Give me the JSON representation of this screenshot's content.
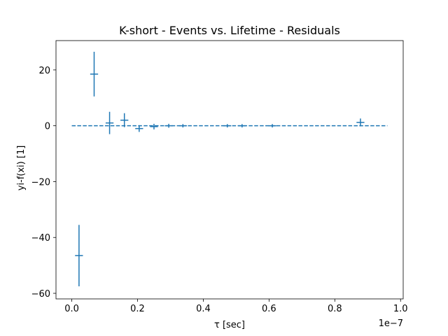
{
  "chart_data": {
    "type": "scatter",
    "title": "K-short - Events vs. Lifetime - Residuals",
    "xlabel": "τ [sec]",
    "ylabel": "yi-f(xi) [1]",
    "x_offset_label": "1e−7",
    "xlim": [
      -0.048,
      1.008
    ],
    "ylim": [
      -62,
      30.5
    ],
    "xticks": [
      0.0,
      0.2,
      0.4,
      0.6,
      0.8,
      1.0
    ],
    "xtick_labels": [
      "0.0",
      "0.2",
      "0.4",
      "0.6",
      "0.8",
      "1.0"
    ],
    "yticks": [
      -60,
      -40,
      -20,
      0,
      20
    ],
    "ytick_labels": [
      "−60",
      "−40",
      "−20",
      "0",
      "20"
    ],
    "grid": false,
    "legend": "none",
    "series": [
      {
        "kind": "errorbar",
        "color": "#1f77b4",
        "points": [
          {
            "x": 0.022,
            "y": -46.5,
            "yerr": 11.0,
            "xerr": 0.012
          },
          {
            "x": 0.068,
            "y": 18.5,
            "yerr": 8.0,
            "xerr": 0.012
          },
          {
            "x": 0.115,
            "y": 1.0,
            "yerr": 4.0,
            "xerr": 0.012
          },
          {
            "x": 0.16,
            "y": 2.0,
            "yerr": 2.5,
            "xerr": 0.012
          },
          {
            "x": 0.205,
            "y": -1.0,
            "yerr": 1.2,
            "xerr": 0.012
          },
          {
            "x": 0.25,
            "y": -0.3,
            "yerr": 1.0,
            "xerr": 0.012
          },
          {
            "x": 0.295,
            "y": 0.0,
            "yerr": 0.7,
            "xerr": 0.012
          },
          {
            "x": 0.338,
            "y": 0.0,
            "yerr": 0.6,
            "xerr": 0.012
          },
          {
            "x": 0.473,
            "y": 0.0,
            "yerr": 0.6,
            "xerr": 0.012
          },
          {
            "x": 0.518,
            "y": 0.0,
            "yerr": 0.6,
            "xerr": 0.012
          },
          {
            "x": 0.61,
            "y": 0.0,
            "yerr": 0.6,
            "xerr": 0.012
          },
          {
            "x": 0.878,
            "y": 1.2,
            "yerr": 1.4,
            "xerr": 0.012
          }
        ]
      },
      {
        "kind": "dashed-line",
        "color": "#1f77b4",
        "x": [
          0.0,
          0.96
        ],
        "y": [
          0,
          0
        ]
      }
    ]
  }
}
